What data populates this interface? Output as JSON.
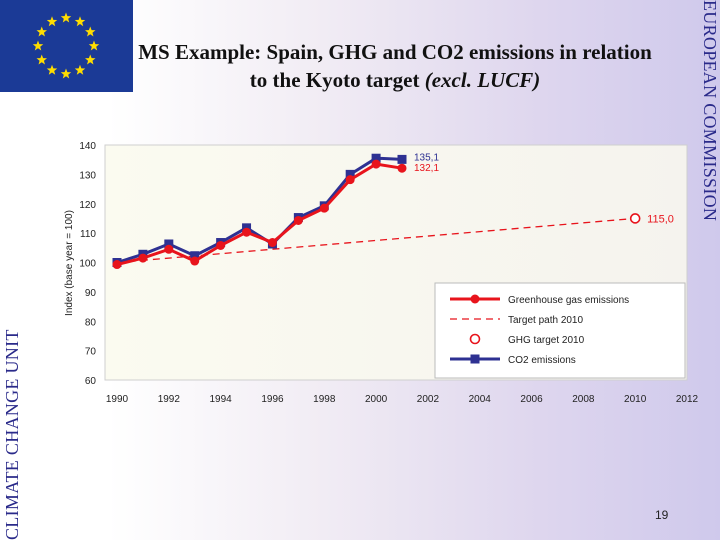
{
  "slide": {
    "title_main": "MS Example: Spain, GHG and CO2 emissions in relation to the Kyoto target ",
    "title_italic": "(excl. LUCF)",
    "left_label": "CLIMATE CHANGE UNIT",
    "right_label": "EUROPEAN COMMISSION",
    "page_number": "19"
  },
  "chart_data": {
    "type": "line",
    "title": "",
    "xlabel": "",
    "ylabel": "Index (base year = 100)",
    "xlim": [
      1990,
      2012
    ],
    "ylim": [
      60,
      140
    ],
    "x_ticks": [
      1990,
      1992,
      1994,
      1996,
      1998,
      2000,
      2002,
      2004,
      2006,
      2008,
      2010,
      2012
    ],
    "y_ticks": [
      60,
      70,
      80,
      90,
      100,
      110,
      120,
      130,
      140
    ],
    "grid": false,
    "legend_position": "bottom-right",
    "series": [
      {
        "name": "Greenhouse gas emissions",
        "color": "#e8141c",
        "style": "line-circle",
        "x": [
          1990,
          1991,
          1992,
          1993,
          1994,
          1995,
          1996,
          1997,
          1998,
          1999,
          2000,
          2001
        ],
        "values": [
          99.3,
          101.5,
          104.5,
          100.5,
          105.8,
          110.3,
          106.8,
          114.3,
          118.5,
          128.2,
          133.5,
          132.1
        ],
        "end_label": "132,1"
      },
      {
        "name": "Target path 2010",
        "color": "#e8141c",
        "style": "dashed",
        "x": [
          1990,
          2010
        ],
        "values": [
          100,
          115
        ]
      },
      {
        "name": "GHG target 2010",
        "color": "#e8141c",
        "style": "open-circle",
        "x": [
          2010
        ],
        "values": [
          115
        ],
        "end_label": "115,0"
      },
      {
        "name": "CO2 emissions",
        "color": "#2e3192",
        "style": "line-square",
        "x": [
          1990,
          1991,
          1992,
          1993,
          1994,
          1995,
          1996,
          1997,
          1998,
          1999,
          2000,
          2001
        ],
        "values": [
          100,
          102.8,
          106.3,
          102.3,
          106.8,
          111.8,
          106.3,
          115.3,
          119.3,
          130,
          135.5,
          135.1
        ],
        "end_label": "135,1"
      }
    ]
  }
}
